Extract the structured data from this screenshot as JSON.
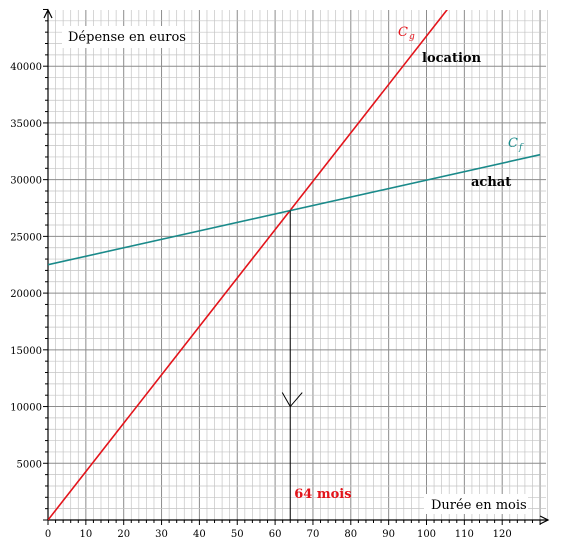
{
  "chart_data": {
    "type": "line",
    "ylabel": "Dépense en euros",
    "xlabel": "Durée en mois",
    "xlim": [
      0,
      130
    ],
    "ylim": [
      0,
      45000
    ],
    "x_ticks": [
      0,
      10,
      20,
      30,
      40,
      50,
      60,
      70,
      80,
      90,
      100,
      110,
      120
    ],
    "y_ticks": [
      5000,
      10000,
      15000,
      20000,
      25000,
      30000,
      35000,
      40000
    ],
    "grid": true,
    "series": [
      {
        "name": "location",
        "curve_label": "C",
        "curve_sub": "g",
        "color": "#e3141b",
        "x": [
          0,
          105.5
        ],
        "y": [
          0,
          45000
        ]
      },
      {
        "name": "achat",
        "curve_label": "C",
        "curve_sub": "f",
        "color": "#1a8a8a",
        "x": [
          0,
          130
        ],
        "y": [
          22500,
          32200
        ]
      }
    ],
    "annotation": {
      "x": 64,
      "text": "64 mois",
      "color": "#e3141b"
    }
  }
}
